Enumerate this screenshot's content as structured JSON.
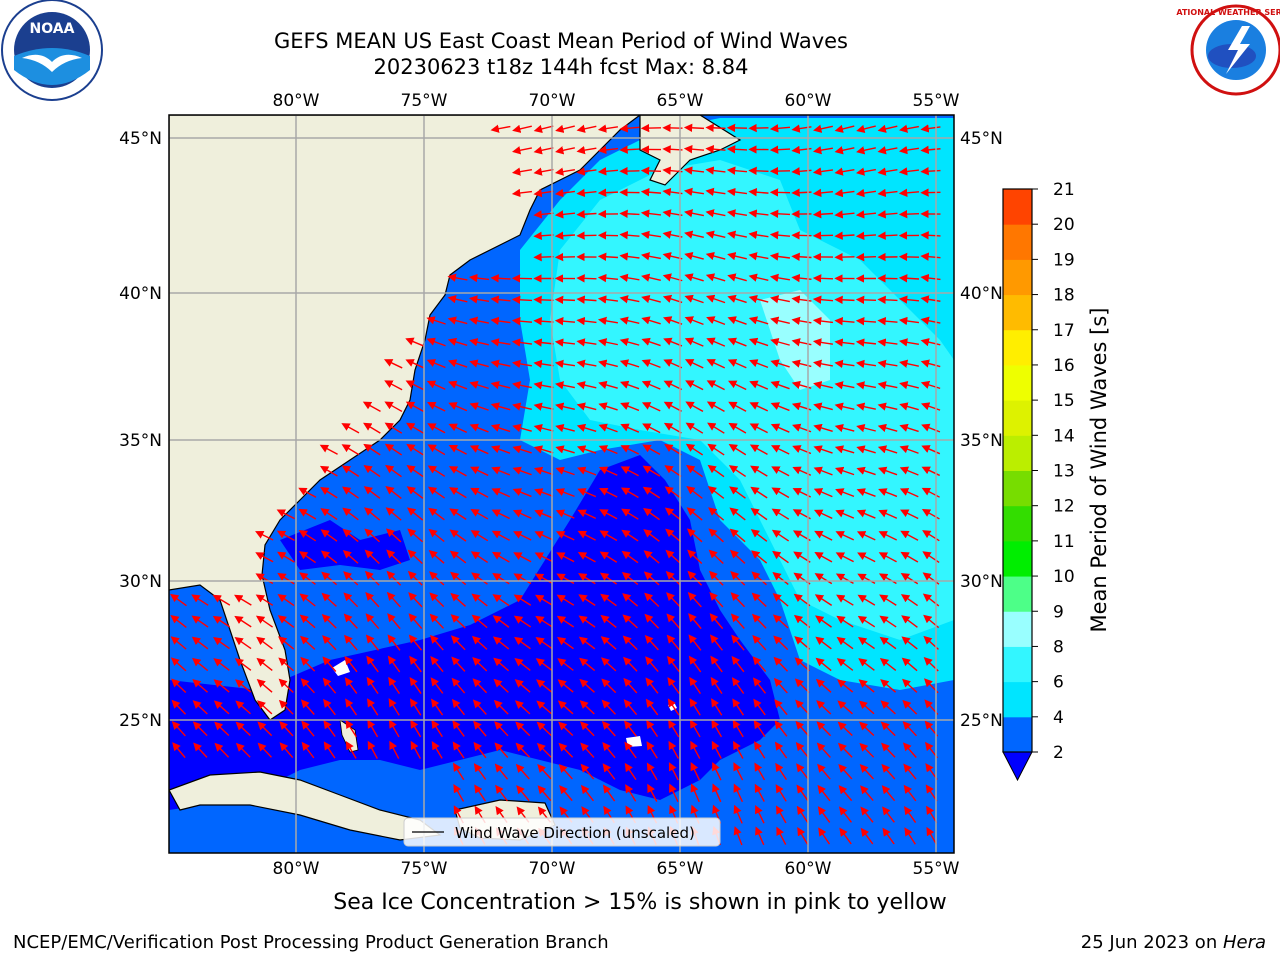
{
  "header": {
    "title_line1": "GEFS MEAN US East Coast Mean Period of Wind Waves",
    "title_line2": "20230623 t18z 144h fcst   Max: 8.84",
    "noaa_logo_text": "NOAA",
    "nws_logo_text": "NATIONAL WEATHER SERVICE"
  },
  "map": {
    "region": "US East Coast / Western Atlantic",
    "lon_range": [
      -85,
      -54
    ],
    "lat_range": [
      20.5,
      46
    ],
    "lon_ticks": [
      "80°W",
      "75°W",
      "70°W",
      "65°W",
      "60°W",
      "55°W"
    ],
    "lat_ticks": [
      "45°N",
      "40°N",
      "35°N",
      "30°N",
      "25°N"
    ],
    "gridlines": true,
    "land_color": "#efefdc",
    "arrow_color": "#ff0000",
    "legend_label": "Wind Wave Direction (unscaled)"
  },
  "colorbar": {
    "label": "Mean Period of Wind Waves [s]",
    "ticks": [
      "2",
      "4",
      "6",
      "8",
      "9",
      "10",
      "11",
      "12",
      "13",
      "14",
      "15",
      "16",
      "17",
      "18",
      "19",
      "20",
      "21"
    ],
    "colors": [
      "#0066ff",
      "#00e5ff",
      "#33f6ff",
      "#99ffff",
      "#4dff88",
      "#00ee00",
      "#33dd00",
      "#77dd00",
      "#bbee00",
      "#ddf200",
      "#eeff00",
      "#ffee00",
      "#ffbb00",
      "#ff9900",
      "#ff7700",
      "#ff4400",
      "#ff0000"
    ],
    "extend_color": "#0000ff"
  },
  "footer": {
    "subtitle": "Sea Ice Concentration > 15% is shown in pink to yellow",
    "left": "NCEP/EMC/Verification Post Processing Product Generation Branch",
    "right_date": "25 Jun 2023 on ",
    "right_host": "Hera"
  }
}
